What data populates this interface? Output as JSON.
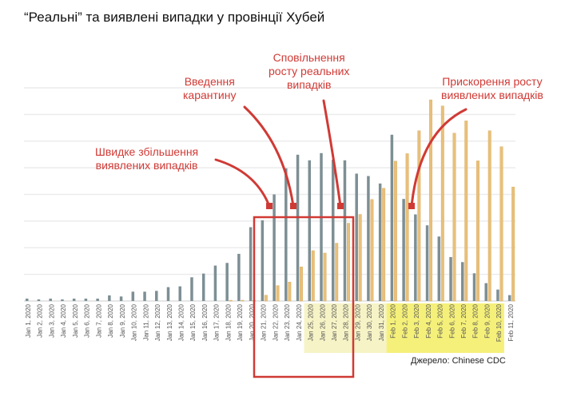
{
  "title": "“Реальні” та виявлені випадки у провінції Хубей",
  "source": "Джерело: Chinese CDC",
  "annotations": {
    "quarantine": [
      "Введення",
      "карантину"
    ],
    "slowdown": [
      "Сповільнення",
      "росту реальних",
      "випадків"
    ],
    "acceleration": [
      "Прискорення росту",
      "виявлених випадків"
    ],
    "rapid_increase": [
      "Швидке збільшення",
      "виявлених випадків"
    ]
  },
  "colors": {
    "onset": "#7d8f94",
    "confirmed": "#e8c07a",
    "annotation": "#d03a35",
    "highlight_jan": "#f6f3c6",
    "highlight_feb": "#f5f07a"
  },
  "chart_data": {
    "type": "bar",
    "title": "",
    "xlabel": "",
    "ylabel": "",
    "ylim": [
      0,
      4000
    ],
    "grid": true,
    "y_tick_labels_shown": false,
    "categories": [
      "Jan 1, 2020",
      "Jan 2, 2020",
      "Jan 3, 2020",
      "Jan 4, 2020",
      "Jan 5, 2020",
      "Jan 6, 2020",
      "Jan 7, 2020",
      "Jan 8, 2020",
      "Jan 9, 2020",
      "Jan 10, 2020",
      "Jan 11, 2020",
      "Jan 12, 2020",
      "Jan 13, 2020",
      "Jan 14, 2020",
      "Jan 15, 2020",
      "Jan 16, 2020",
      "Jan 17, 2020",
      "Jan 18, 2020",
      "Jan 19, 2020",
      "Jan 20, 2020",
      "Jan 21, 2020",
      "Jan 22, 2020",
      "Jan 23, 2020",
      "Jan 24, 2020",
      "Jan 25, 2020",
      "Jan 26, 2020",
      "Jan 27, 2020",
      "Jan 28, 2020",
      "Jan 29, 2020",
      "Jan 30, 2020",
      "Jan 31, 2020",
      "Feb 1, 2020",
      "Feb 2, 2020",
      "Feb 3, 2020",
      "Feb 4, 2020",
      "Feb 5, 2020",
      "Feb 6, 2020",
      "Feb 7, 2020",
      "Feb 8, 2020",
      "Feb 9, 2020",
      "Feb 10, 2020",
      "Feb 11, 2020"
    ],
    "series": [
      {
        "values": [
          45,
          30,
          45,
          30,
          45,
          45,
          45,
          105,
          85,
          175,
          175,
          190,
          260,
          275,
          445,
          515,
          665,
          715,
          885,
          1385,
          1515,
          2000,
          2490,
          2745,
          2640,
          2775,
          2650,
          2640,
          2390,
          2345,
          2205,
          3120,
          1915,
          1625,
          1420,
          1210,
          825,
          730,
          520,
          335,
          215,
          110
        ]
      },
      {
        "values": [
          0,
          0,
          0,
          0,
          0,
          0,
          0,
          0,
          0,
          0,
          0,
          0,
          0,
          0,
          0,
          0,
          0,
          15,
          15,
          10,
          110,
          290,
          355,
          640,
          945,
          900,
          1085,
          1460,
          1625,
          1905,
          2115,
          2625,
          2765,
          3195,
          3775,
          3660,
          3150,
          3380,
          2630,
          3195,
          2895,
          2140
        ]
      }
    ]
  }
}
